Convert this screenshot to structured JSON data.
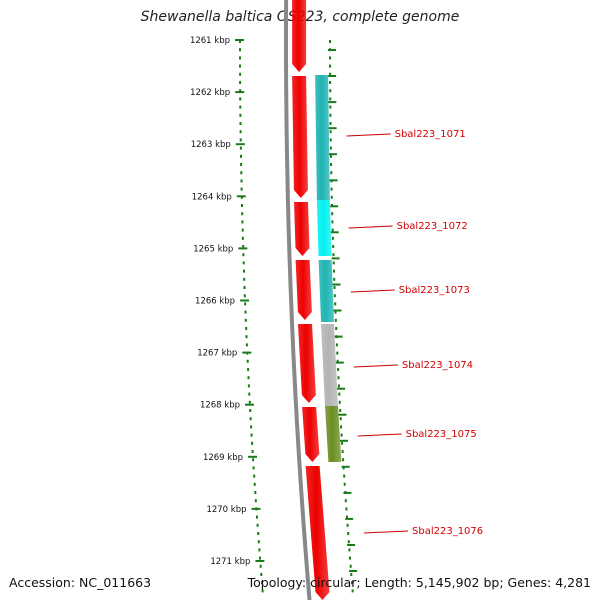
{
  "title": "Shewanella baltica OS223, complete genome",
  "footer": {
    "accession": "Accession: NC_011663",
    "summary": "Topology: circular; Length: 5,145,902 bp; Genes: 4,281"
  },
  "scale": {
    "unit": "kbp",
    "labels": [
      "1261 kbp",
      "1262 kbp",
      "1263 kbp",
      "1264 kbp",
      "1265 kbp",
      "1266 kbp",
      "1267 kbp",
      "1268 kbp",
      "1269 kbp",
      "1270 kbp",
      "1271 kbp"
    ]
  },
  "colors": {
    "backbone": "#888888",
    "forward_gene": "#ee0000",
    "tick": "#1a7a1a",
    "label": "#d40000",
    "callout_line": "#cc0000"
  },
  "genes": [
    {
      "locus_tag": "Sbal223_1071",
      "cds_color": "#1fb3b3"
    },
    {
      "locus_tag": "Sbal223_1072",
      "cds_color": "#00f0f0"
    },
    {
      "locus_tag": "Sbal223_1073",
      "cds_color": "#1fb3b3"
    },
    {
      "locus_tag": "Sbal223_1074",
      "cds_color": "#b3b3b3"
    },
    {
      "locus_tag": "Sbal223_1075",
      "cds_color": "#6b8e23"
    },
    {
      "locus_tag": "Sbal223_1076",
      "cds_color": null
    }
  ]
}
